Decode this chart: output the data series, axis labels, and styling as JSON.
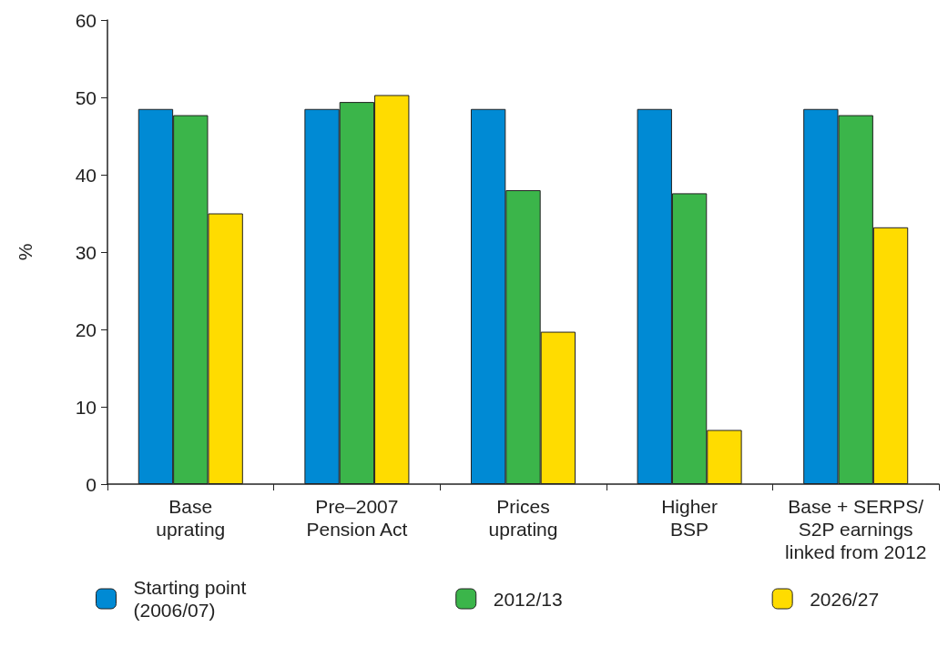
{
  "chart_data": {
    "type": "bar",
    "ylabel": "%",
    "categories": [
      "Base\nuprating",
      "Pre–2007\nPension Act",
      "Prices\nuprating",
      "Higher\nBSP",
      "Base + SERPS/\nS2P earnings\nlinked from 2012"
    ],
    "series": [
      {
        "name": "Starting point\n(2006/07)",
        "color": "#008ad4",
        "values": [
          48.5,
          48.5,
          48.5,
          48.5,
          48.5
        ]
      },
      {
        "name": "2012/13",
        "color": "#3bb54a",
        "values": [
          47.7,
          49.4,
          38.0,
          37.6,
          47.7
        ]
      },
      {
        "name": "2026/27",
        "color": "#ffdc00",
        "values": [
          35.0,
          50.3,
          19.7,
          7.0,
          33.2
        ]
      }
    ],
    "ylim": [
      0,
      60
    ],
    "yticks": [
      0,
      10,
      20,
      30,
      40,
      50,
      60
    ],
    "grid": false,
    "legend": "bottom"
  }
}
